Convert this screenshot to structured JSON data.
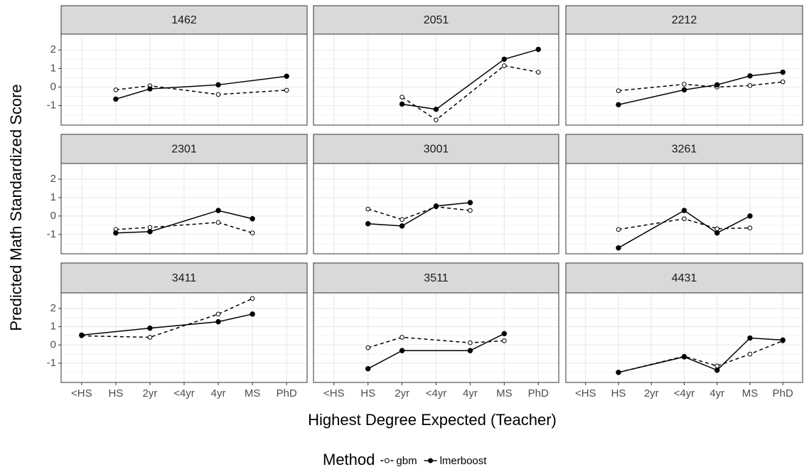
{
  "chart_data": {
    "type": "line",
    "x_label": "Highest Degree Expected (Teacher)",
    "y_label": "Predicted Math Standardized Score",
    "legend_title": "Method",
    "categories": [
      "<HS",
      "HS",
      "2yr",
      "<4yr",
      "4yr",
      "MS",
      "PhD"
    ],
    "ylim": [
      -2.05,
      2.85
    ],
    "yticks": [
      -1,
      0,
      1,
      2
    ],
    "grid": true,
    "series": [
      {
        "name": "gbm",
        "color": "#000000",
        "dashed": true,
        "marker": "open"
      },
      {
        "name": "lmerboost",
        "color": "#000000",
        "dashed": false,
        "marker": "filled"
      }
    ],
    "facets": [
      {
        "title": "1462",
        "categories": [
          "HS",
          "2yr",
          "4yr",
          "PhD"
        ],
        "values": [
          [
            -0.15,
            0.07,
            -0.4,
            -0.17
          ],
          [
            -0.65,
            -0.1,
            0.12,
            0.58
          ]
        ]
      },
      {
        "title": "2051",
        "categories": [
          "2yr",
          "<4yr",
          "MS",
          "PhD"
        ],
        "values": [
          [
            -0.54,
            -1.77,
            1.15,
            0.8
          ],
          [
            -0.92,
            -1.2,
            1.5,
            2.03
          ]
        ]
      },
      {
        "title": "2212",
        "categories": [
          "HS",
          "<4yr",
          "4yr",
          "MS",
          "PhD"
        ],
        "values": [
          [
            -0.2,
            0.15,
            0,
            0.08,
            0.28
          ],
          [
            -0.95,
            -0.15,
            0.12,
            0.6,
            0.8
          ]
        ]
      },
      {
        "title": "2301",
        "categories": [
          "HS",
          "2yr",
          "4yr",
          "MS"
        ],
        "values": [
          [
            -0.73,
            -0.62,
            -0.35,
            -0.92
          ],
          [
            -0.92,
            -0.85,
            0.3,
            -0.15
          ]
        ]
      },
      {
        "title": "3001",
        "categories": [
          "HS",
          "2yr",
          "<4yr",
          "4yr"
        ],
        "values": [
          [
            0.38,
            -0.19,
            0.5,
            0.3
          ],
          [
            -0.42,
            -0.54,
            0.54,
            0.73
          ]
        ]
      },
      {
        "title": "3261",
        "categories": [
          "HS",
          "<4yr",
          "4yr",
          "MS"
        ],
        "values": [
          [
            -0.73,
            -0.15,
            -0.69,
            -0.65
          ],
          [
            -1.73,
            0.3,
            -0.92,
            0
          ]
        ]
      },
      {
        "title": "3411",
        "categories": [
          "<HS",
          "2yr",
          "4yr",
          "MS"
        ],
        "values": [
          [
            0.5,
            0.42,
            1.69,
            2.54
          ],
          [
            0.54,
            0.92,
            1.27,
            1.69
          ]
        ]
      },
      {
        "title": "3511",
        "categories": [
          "HS",
          "2yr",
          "4yr",
          "MS"
        ],
        "values": [
          [
            -0.15,
            0.42,
            0.12,
            0.23
          ],
          [
            -1.3,
            -0.31,
            -0.31,
            0.62
          ]
        ]
      },
      {
        "title": "4431",
        "categories": [
          "HS",
          "<4yr",
          "4yr",
          "MS",
          "PhD"
        ],
        "values": [
          [
            -1.5,
            -0.62,
            -1.15,
            -0.5,
            0.23
          ],
          [
            -1.5,
            -0.65,
            -1.38,
            0.38,
            0.27
          ]
        ]
      }
    ]
  }
}
